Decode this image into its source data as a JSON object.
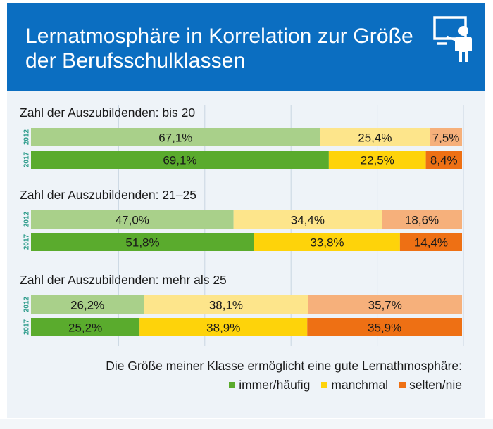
{
  "header": {
    "title_line1": "Lernatmosphäre in Korrelation zur Größe",
    "title_line2": "der Berufsschulklassen",
    "icon": "classroom-teacher-icon"
  },
  "colors": {
    "header_bg": "#0b6ec1",
    "immer_2012": "#a9d08a",
    "immer_2017": "#5aab2d",
    "manchmal_2012": "#fde58b",
    "manchmal_2017": "#fed30a",
    "selten_2012": "#f6b07b",
    "selten_2017": "#ee7014",
    "year_label": "#2f9c8c"
  },
  "chart_data": {
    "type": "bar",
    "orientation": "horizontal-stacked-100",
    "groups": [
      {
        "label": "Zahl der Auszubildenden: bis 20",
        "rows": [
          {
            "year": "2012",
            "values": [
              67.1,
              25.4,
              7.5
            ],
            "labels": [
              "67,1%",
              "25,4%",
              "7,5%"
            ]
          },
          {
            "year": "2017",
            "values": [
              69.1,
              22.5,
              8.4
            ],
            "labels": [
              "69,1%",
              "22,5%",
              "8,4%"
            ]
          }
        ]
      },
      {
        "label": "Zahl der Auszubildenden: 21–25",
        "rows": [
          {
            "year": "2012",
            "values": [
              47.0,
              34.4,
              18.6
            ],
            "labels": [
              "47,0%",
              "34,4%",
              "18,6%"
            ]
          },
          {
            "year": "2017",
            "values": [
              51.8,
              33.8,
              14.4
            ],
            "labels": [
              "51,8%",
              "33,8%",
              "14,4%"
            ]
          }
        ]
      },
      {
        "label": "Zahl der Auszubildenden: mehr als 25",
        "rows": [
          {
            "year": "2012",
            "values": [
              26.2,
              38.1,
              35.7
            ],
            "labels": [
              "26,2%",
              "38,1%",
              "35,7%"
            ]
          },
          {
            "year": "2017",
            "values": [
              25.2,
              38.9,
              35.9
            ],
            "labels": [
              "25,2%",
              "38,9%",
              "35,9%"
            ]
          }
        ]
      }
    ],
    "series": [
      {
        "name": "immer/häufig"
      },
      {
        "name": "manchmal"
      },
      {
        "name": "selten/nie"
      }
    ],
    "legend_title": "Die Größe meiner Klasse ermöglicht eine gute Lernathmosphäre:",
    "xlim": [
      0,
      100
    ],
    "grid": true
  }
}
